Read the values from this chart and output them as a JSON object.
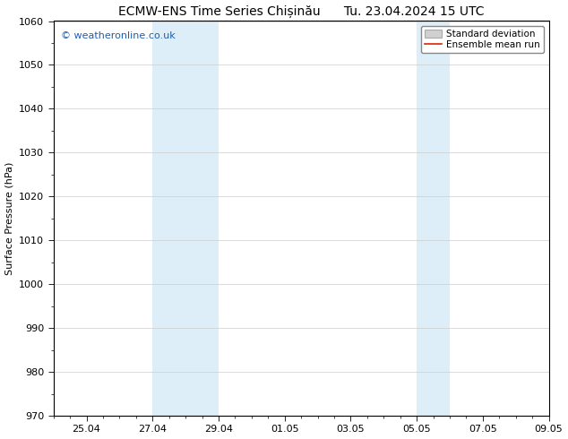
{
  "title_left": "ECMW-ENS Time Series Chișinău",
  "title_right": "Tu. 23.04.2024 15 UTC",
  "ylabel": "Surface Pressure (hPa)",
  "ylim": [
    970,
    1060
  ],
  "yticks": [
    970,
    980,
    990,
    1000,
    1010,
    1020,
    1030,
    1040,
    1050,
    1060
  ],
  "x_start_day": 24,
  "x_start_month": 4,
  "x_end_day": 9,
  "x_end_month": 5,
  "xtick_labels": [
    "25.04",
    "27.04",
    "29.04",
    "01.05",
    "03.05",
    "05.05",
    "07.05",
    "09.05"
  ],
  "xtick_days": [
    25,
    27,
    29,
    1,
    3,
    5,
    7,
    9
  ],
  "xtick_months": [
    4,
    4,
    4,
    5,
    5,
    5,
    5,
    5
  ],
  "shaded_bands": [
    {
      "start_day": 27,
      "start_month": 4,
      "end_day": 29,
      "end_month": 4
    },
    {
      "start_day": 5,
      "start_month": 5,
      "end_day": 6,
      "end_month": 5
    }
  ],
  "shade_color": "#ddeef8",
  "watermark_text": "© weatheronline.co.uk",
  "watermark_color": "#1a5fb4",
  "legend_std_label": "Standard deviation",
  "legend_mean_label": "Ensemble mean run",
  "legend_std_color": "#d0d0d0",
  "legend_std_edge": "#aaaaaa",
  "legend_mean_color": "#dd2200",
  "bg_color": "#ffffff",
  "grid_color": "#aaaaaa",
  "spine_color": "#000000",
  "title_fontsize": 10,
  "axis_label_fontsize": 8,
  "tick_fontsize": 8,
  "watermark_fontsize": 8
}
